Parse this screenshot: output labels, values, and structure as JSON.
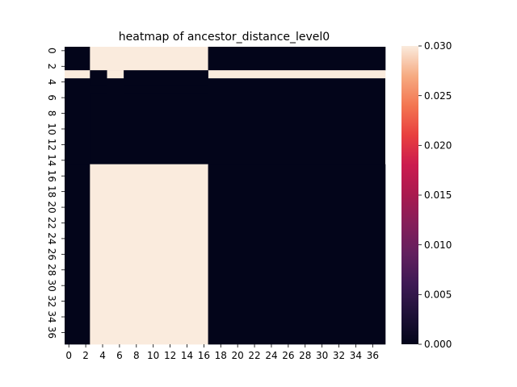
{
  "chart_data": {
    "type": "heatmap",
    "title": "heatmap of ancestor_distance_level0",
    "xlabel": "",
    "ylabel": "",
    "n_rows": 38,
    "n_cols": 38,
    "low_value": 0.0,
    "high_value": 0.03,
    "low_color": "#03051a",
    "high_color": "#faebdd",
    "x_tick_labels": [
      "0",
      "2",
      "4",
      "6",
      "8",
      "10",
      "12",
      "14",
      "16",
      "18",
      "20",
      "22",
      "24",
      "26",
      "28",
      "30",
      "32",
      "34",
      "36"
    ],
    "y_tick_labels": [
      "0",
      "2",
      "4",
      "6",
      "8",
      "10",
      "12",
      "14",
      "16",
      "18",
      "20",
      "22",
      "24",
      "26",
      "28",
      "30",
      "32",
      "34",
      "36"
    ],
    "colorbar": {
      "range": [
        0.0,
        0.03
      ],
      "tick_labels": [
        "0.000",
        "0.005",
        "0.010",
        "0.015",
        "0.020",
        "0.025",
        "0.030"
      ],
      "cmap": "rocket"
    },
    "blocks": [
      {
        "rows": [
          0,
          2
        ],
        "cols": [
          0,
          2
        ],
        "value": 0.0
      },
      {
        "rows": [
          0,
          2
        ],
        "cols": [
          3,
          16
        ],
        "value": 0.03
      },
      {
        "rows": [
          0,
          2
        ],
        "cols": [
          17,
          37
        ],
        "value": 0.0
      },
      {
        "rows": [
          3,
          3
        ],
        "cols": [
          0,
          37
        ],
        "value": 0.03
      },
      {
        "rows": [
          3,
          4
        ],
        "cols": [
          3,
          4
        ],
        "value": 0.0
      },
      {
        "rows": [
          3,
          4
        ],
        "cols": [
          7,
          16
        ],
        "value": 0.0
      },
      {
        "rows": [
          6,
          14
        ],
        "cols": [
          3,
          4
        ],
        "value": 0.0
      },
      {
        "rows": [
          6,
          14
        ],
        "cols": [
          7,
          16
        ],
        "value": 0.0
      },
      {
        "rows": [
          15,
          37
        ],
        "cols": [
          0,
          2
        ],
        "value": 0.0
      },
      {
        "rows": [
          15,
          37
        ],
        "cols": [
          3,
          16
        ],
        "value": 0.03
      },
      {
        "rows": [
          15,
          37
        ],
        "cols": [
          17,
          37
        ],
        "value": 0.0
      }
    ]
  }
}
